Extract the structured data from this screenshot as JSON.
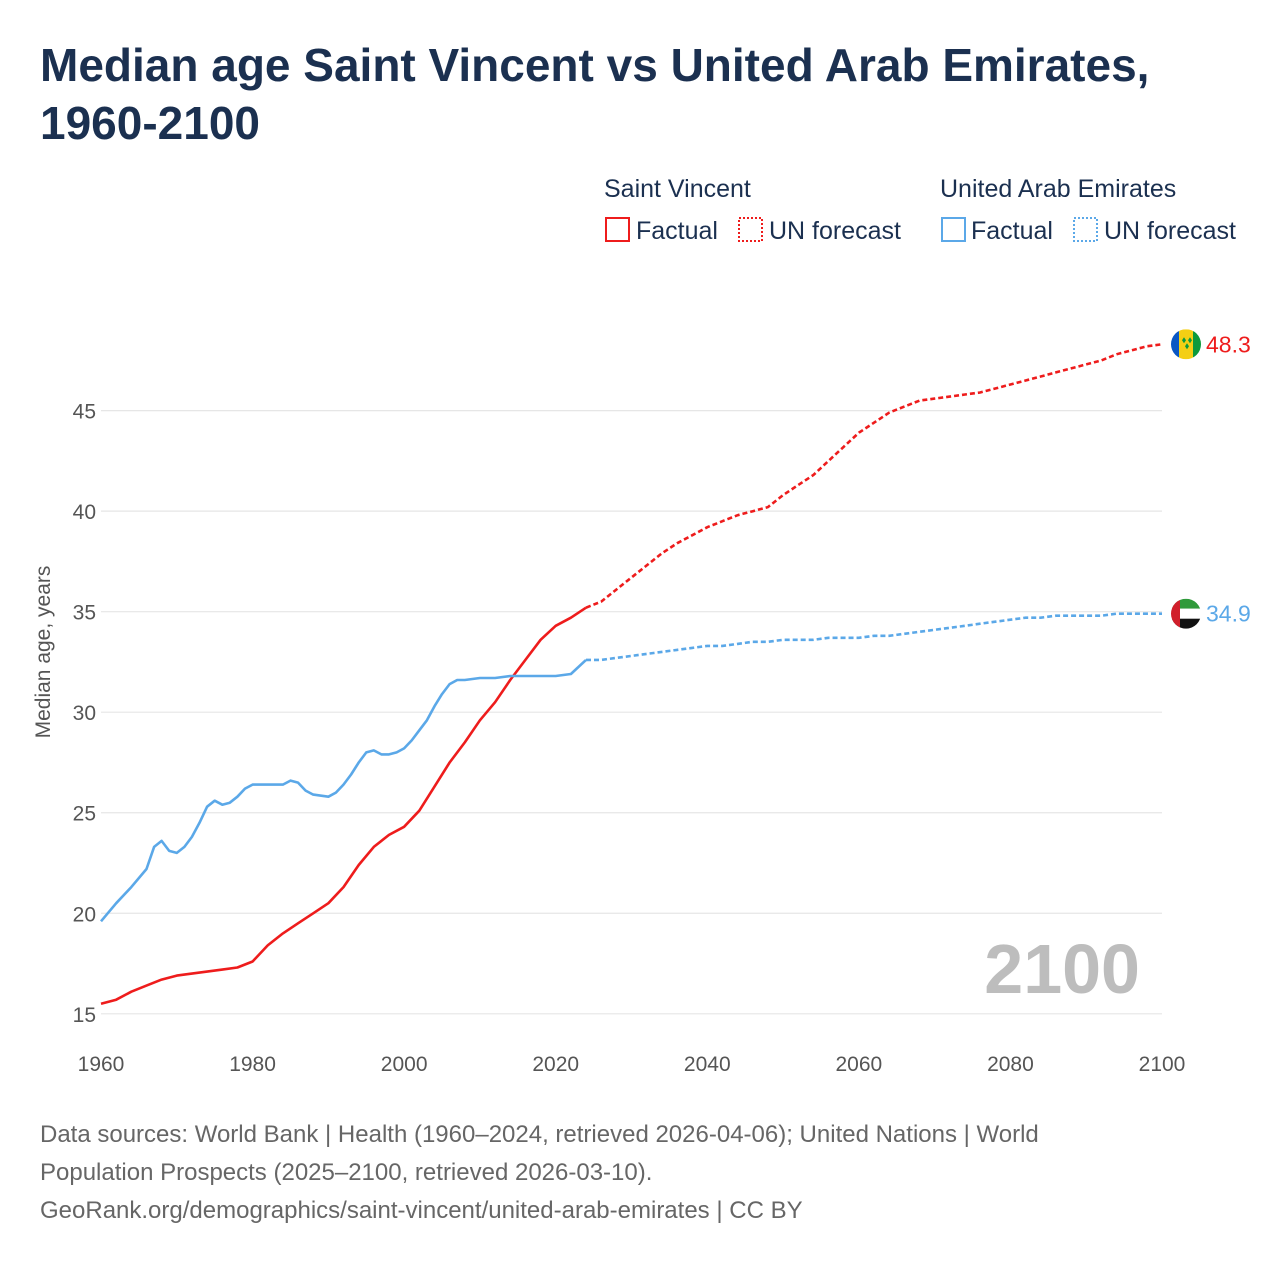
{
  "title": "Median age Saint Vincent vs United Arab Emirates, 1960-2100",
  "legend": {
    "groups": [
      {
        "name": "Saint Vincent",
        "factual": "Factual",
        "forecast": "UN forecast",
        "color": "#ee1c1c"
      },
      {
        "name": "United Arab Emirates",
        "factual": "Factual",
        "forecast": "UN forecast",
        "color": "#5ba8e8"
      }
    ]
  },
  "year_watermark": "2100",
  "footer": {
    "line1": "Data sources: World Bank | Health (1960–2024, retrieved 2026-04-06); United Nations | World",
    "line2": "Population Prospects (2025–2100, retrieved 2026-03-10).",
    "line3": "GeoRank.org/demographics/saint-vincent/united-arab-emirates | CC BY"
  },
  "chart_data": {
    "type": "line",
    "title": "Median age Saint Vincent vs United Arab Emirates, 1960-2100",
    "xlabel": "",
    "ylabel": "Median age, years",
    "xlim": [
      1960,
      2100
    ],
    "ylim": [
      13,
      51
    ],
    "xticks": [
      1960,
      1980,
      2000,
      2020,
      2040,
      2060,
      2080,
      2100
    ],
    "yticks": [
      15,
      20,
      25,
      30,
      35,
      40,
      45
    ],
    "grid": "horizontal",
    "forecast_start": 2024,
    "series": [
      {
        "name": "Saint Vincent",
        "color": "#ee1c1c",
        "end_label": "48.3",
        "flag": "saint-vincent-flag",
        "points": [
          [
            1960,
            15.5
          ],
          [
            1962,
            15.7
          ],
          [
            1964,
            16.1
          ],
          [
            1966,
            16.4
          ],
          [
            1968,
            16.7
          ],
          [
            1970,
            16.9
          ],
          [
            1972,
            17.0
          ],
          [
            1974,
            17.1
          ],
          [
            1976,
            17.2
          ],
          [
            1978,
            17.3
          ],
          [
            1980,
            17.6
          ],
          [
            1982,
            18.4
          ],
          [
            1984,
            19.0
          ],
          [
            1986,
            19.5
          ],
          [
            1988,
            20.0
          ],
          [
            1990,
            20.5
          ],
          [
            1992,
            21.3
          ],
          [
            1994,
            22.4
          ],
          [
            1996,
            23.3
          ],
          [
            1998,
            23.9
          ],
          [
            2000,
            24.3
          ],
          [
            2002,
            25.1
          ],
          [
            2004,
            26.3
          ],
          [
            2006,
            27.5
          ],
          [
            2008,
            28.5
          ],
          [
            2010,
            29.6
          ],
          [
            2012,
            30.5
          ],
          [
            2014,
            31.6
          ],
          [
            2016,
            32.6
          ],
          [
            2018,
            33.6
          ],
          [
            2020,
            34.3
          ],
          [
            2022,
            34.7
          ],
          [
            2024,
            35.2
          ],
          [
            2026,
            35.5
          ],
          [
            2028,
            36.1
          ],
          [
            2030,
            36.7
          ],
          [
            2032,
            37.3
          ],
          [
            2034,
            37.9
          ],
          [
            2036,
            38.4
          ],
          [
            2038,
            38.8
          ],
          [
            2040,
            39.2
          ],
          [
            2042,
            39.5
          ],
          [
            2044,
            39.8
          ],
          [
            2046,
            40.0
          ],
          [
            2048,
            40.2
          ],
          [
            2050,
            40.8
          ],
          [
            2052,
            41.3
          ],
          [
            2054,
            41.8
          ],
          [
            2056,
            42.5
          ],
          [
            2058,
            43.2
          ],
          [
            2060,
            43.9
          ],
          [
            2062,
            44.4
          ],
          [
            2064,
            44.9
          ],
          [
            2066,
            45.2
          ],
          [
            2068,
            45.5
          ],
          [
            2070,
            45.6
          ],
          [
            2072,
            45.7
          ],
          [
            2074,
            45.8
          ],
          [
            2076,
            45.9
          ],
          [
            2078,
            46.1
          ],
          [
            2080,
            46.3
          ],
          [
            2082,
            46.5
          ],
          [
            2084,
            46.7
          ],
          [
            2086,
            46.9
          ],
          [
            2088,
            47.1
          ],
          [
            2090,
            47.3
          ],
          [
            2092,
            47.5
          ],
          [
            2094,
            47.8
          ],
          [
            2096,
            48.0
          ],
          [
            2098,
            48.2
          ],
          [
            2100,
            48.3
          ]
        ]
      },
      {
        "name": "United Arab Emirates",
        "color": "#5ba8e8",
        "end_label": "34.9",
        "flag": "uae-flag",
        "points": [
          [
            1960,
            19.6
          ],
          [
            1962,
            20.5
          ],
          [
            1964,
            21.3
          ],
          [
            1966,
            22.2
          ],
          [
            1967,
            23.3
          ],
          [
            1968,
            23.6
          ],
          [
            1969,
            23.1
          ],
          [
            1970,
            23.0
          ],
          [
            1971,
            23.3
          ],
          [
            1972,
            23.8
          ],
          [
            1973,
            24.5
          ],
          [
            1974,
            25.3
          ],
          [
            1975,
            25.6
          ],
          [
            1976,
            25.4
          ],
          [
            1977,
            25.5
          ],
          [
            1978,
            25.8
          ],
          [
            1979,
            26.2
          ],
          [
            1980,
            26.4
          ],
          [
            1982,
            26.4
          ],
          [
            1984,
            26.4
          ],
          [
            1985,
            26.6
          ],
          [
            1986,
            26.5
          ],
          [
            1987,
            26.1
          ],
          [
            1988,
            25.9
          ],
          [
            1990,
            25.8
          ],
          [
            1991,
            26.0
          ],
          [
            1992,
            26.4
          ],
          [
            1993,
            26.9
          ],
          [
            1994,
            27.5
          ],
          [
            1995,
            28.0
          ],
          [
            1996,
            28.1
          ],
          [
            1997,
            27.9
          ],
          [
            1998,
            27.9
          ],
          [
            1999,
            28.0
          ],
          [
            2000,
            28.2
          ],
          [
            2001,
            28.6
          ],
          [
            2002,
            29.1
          ],
          [
            2003,
            29.6
          ],
          [
            2004,
            30.3
          ],
          [
            2005,
            30.9
          ],
          [
            2006,
            31.4
          ],
          [
            2007,
            31.6
          ],
          [
            2008,
            31.6
          ],
          [
            2010,
            31.7
          ],
          [
            2012,
            31.7
          ],
          [
            2014,
            31.8
          ],
          [
            2016,
            31.8
          ],
          [
            2018,
            31.8
          ],
          [
            2020,
            31.8
          ],
          [
            2022,
            31.9
          ],
          [
            2024,
            32.6
          ],
          [
            2026,
            32.6
          ],
          [
            2028,
            32.7
          ],
          [
            2030,
            32.8
          ],
          [
            2032,
            32.9
          ],
          [
            2034,
            33.0
          ],
          [
            2036,
            33.1
          ],
          [
            2038,
            33.2
          ],
          [
            2040,
            33.3
          ],
          [
            2042,
            33.3
          ],
          [
            2044,
            33.4
          ],
          [
            2046,
            33.5
          ],
          [
            2048,
            33.5
          ],
          [
            2050,
            33.6
          ],
          [
            2052,
            33.6
          ],
          [
            2054,
            33.6
          ],
          [
            2056,
            33.7
          ],
          [
            2058,
            33.7
          ],
          [
            2060,
            33.7
          ],
          [
            2062,
            33.8
          ],
          [
            2064,
            33.8
          ],
          [
            2066,
            33.9
          ],
          [
            2068,
            34.0
          ],
          [
            2070,
            34.1
          ],
          [
            2072,
            34.2
          ],
          [
            2074,
            34.3
          ],
          [
            2076,
            34.4
          ],
          [
            2078,
            34.5
          ],
          [
            2080,
            34.6
          ],
          [
            2082,
            34.7
          ],
          [
            2084,
            34.7
          ],
          [
            2086,
            34.8
          ],
          [
            2088,
            34.8
          ],
          [
            2090,
            34.8
          ],
          [
            2092,
            34.8
          ],
          [
            2094,
            34.9
          ],
          [
            2096,
            34.9
          ],
          [
            2098,
            34.9
          ],
          [
            2100,
            34.9
          ]
        ]
      }
    ]
  }
}
